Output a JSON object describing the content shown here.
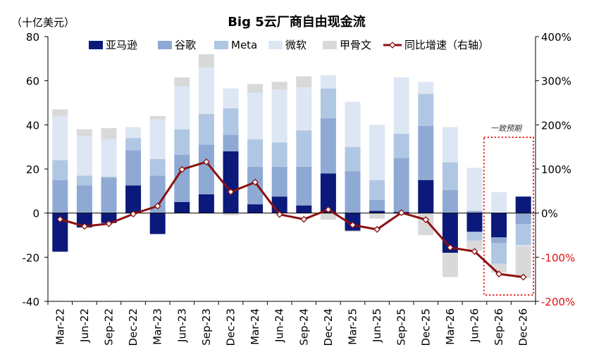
{
  "chart_data": {
    "type": "bar",
    "title": "Big 5云厂商自由现金流",
    "ylabel_left": "（十亿美元）",
    "annotation": "一致预期",
    "categories": [
      "Mar-22",
      "Jun-22",
      "Sep-22",
      "Dec-22",
      "Mar-23",
      "Jun-23",
      "Sep-23",
      "Dec-23",
      "Mar-24",
      "Jun-24",
      "Sep-24",
      "Dec-24",
      "Mar-25",
      "Jun-25",
      "Sep-25",
      "Dec-25",
      "Mar-26",
      "Jun-26",
      "Sep-26",
      "Dec-26"
    ],
    "left_axis": {
      "min": -40,
      "max": 80,
      "ticks": [
        -40,
        -20,
        0,
        20,
        40,
        60,
        80
      ]
    },
    "right_axis": {
      "min": -200,
      "max": 400,
      "ticks": [
        -200,
        -100,
        0,
        100,
        200,
        300,
        400
      ],
      "unit": "%"
    },
    "series": [
      {
        "name": "亚马逊",
        "color": "#0b1a7a",
        "values": [
          -17.5,
          -6.5,
          -4.5,
          12.5,
          -9.5,
          5,
          8.5,
          28,
          4,
          7.5,
          3.5,
          18,
          -8,
          1,
          0.5,
          15,
          -18,
          -8.5,
          -11,
          7.5
        ]
      },
      {
        "name": "谷歌",
        "color": "#8eaad4",
        "values": [
          15,
          12.5,
          16,
          16,
          17,
          21.5,
          22.5,
          7.5,
          17,
          13.5,
          17.5,
          25,
          19,
          5,
          24.5,
          24.5,
          10.5,
          1,
          -2.5,
          -5
        ]
      },
      {
        "name": "Meta",
        "color": "#b0c7e4",
        "values": [
          9,
          4.5,
          0.5,
          5.5,
          7.5,
          11.5,
          14,
          12,
          12.5,
          11,
          16.5,
          13.5,
          11,
          9,
          11,
          14.5,
          12.5,
          -4,
          -9.5,
          -9.5
        ]
      },
      {
        "name": "微软",
        "color": "#dde7f3",
        "values": [
          20,
          18,
          17,
          5,
          18,
          19.5,
          21,
          9,
          21,
          24,
          19.5,
          6,
          20.5,
          25,
          25.5,
          5.5,
          16,
          19.5,
          9.5,
          -0.5
        ]
      },
      {
        "name": "甲骨文",
        "color": "#d9d9d9",
        "values": [
          3,
          3,
          5,
          0,
          1.5,
          4,
          6,
          -1,
          4,
          3.5,
          5,
          -3,
          -0.5,
          -2.5,
          -0.5,
          -10,
          -11,
          -4.5,
          -4,
          -14.5
        ]
      }
    ],
    "line": {
      "name": "同比增速（右轴）",
      "color": "#8c1010",
      "values": [
        -14,
        -30,
        -24,
        -2,
        16,
        99,
        116,
        48,
        70,
        -3,
        -14,
        8,
        -27,
        -37,
        1,
        -15,
        -78,
        -87,
        -138,
        -145
      ]
    },
    "forecast_box_categories": [
      "Sep-26",
      "Dec-26"
    ],
    "grid": false,
    "legend_position": "top"
  }
}
